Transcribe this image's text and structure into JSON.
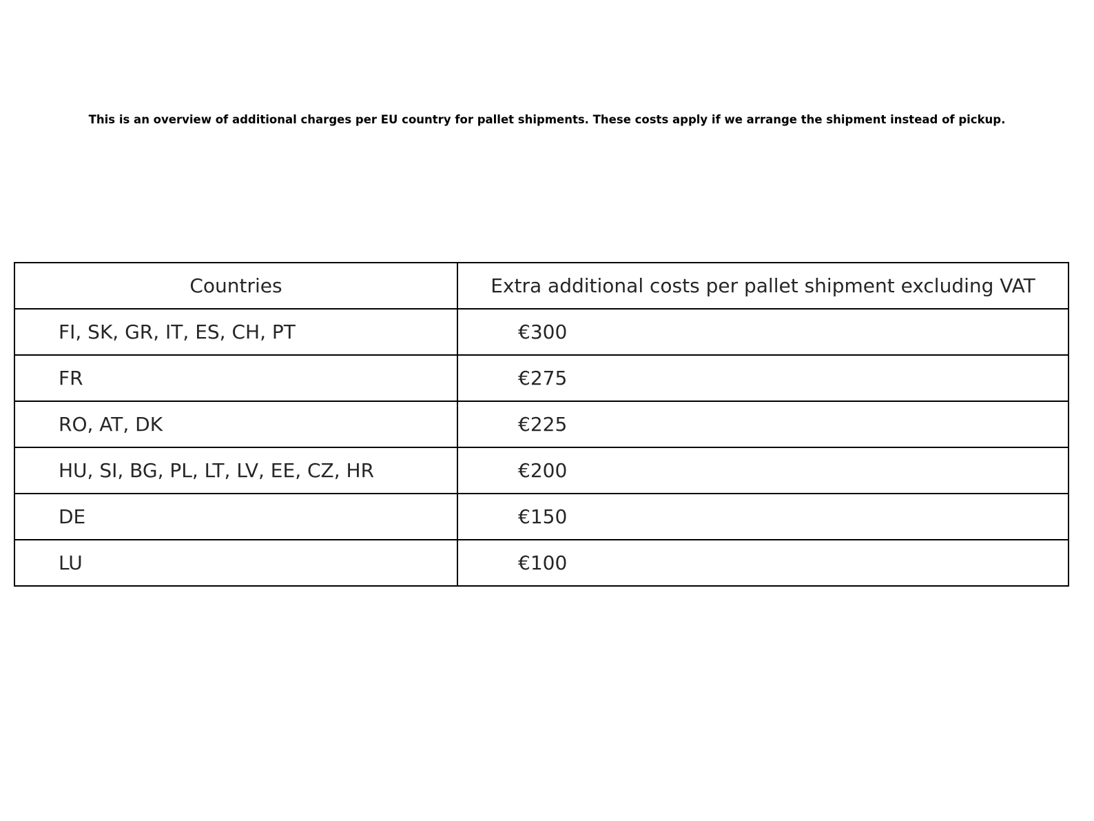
{
  "chart_data": {
    "type": "table",
    "title": "This is an overview of additional charges per EU country for pallet shipments. These costs apply if we arrange the shipment instead of pickup.",
    "columns": [
      "Countries",
      "Extra additional costs per pallet shipment excluding VAT"
    ],
    "rows": [
      [
        "FI, SK, GR, IT, ES, CH, PT",
        "€300"
      ],
      [
        "FR",
        "€275"
      ],
      [
        "RO, AT, DK",
        "€225"
      ],
      [
        "HU, SI, BG, PL, LT, LV, EE, CZ, HR",
        "€200"
      ],
      [
        "DE",
        "€150"
      ],
      [
        "LU",
        "€100"
      ]
    ]
  }
}
